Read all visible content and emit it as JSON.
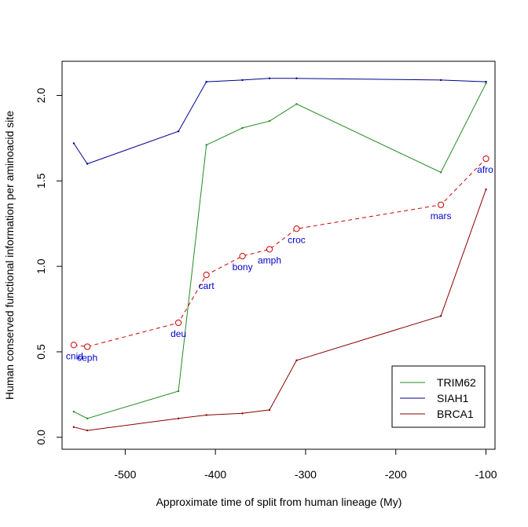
{
  "chart_data": {
    "type": "line",
    "xlabel": "Approximate time of split from human lineage (My)",
    "ylabel": "Human conserved functional information per aminoacid site",
    "xlim": [
      -570,
      -90
    ],
    "ylim": [
      -0.07,
      2.2
    ],
    "x_ticks": [
      -500,
      -400,
      -300,
      -200,
      -100
    ],
    "x_tick_labels": [
      "-500",
      "-400",
      "-300",
      "-200",
      "-100"
    ],
    "y_ticks": [
      0.0,
      0.5,
      1.0,
      1.5,
      2.0
    ],
    "y_tick_labels": [
      "0.0",
      "0.5",
      "1.0",
      "1.5",
      "2.0"
    ],
    "legend_position": "bottom-right",
    "series": [
      {
        "name": "TRIM62",
        "color": "#228B22",
        "line": "solid",
        "x": [
          -557,
          -542,
          -441,
          -410,
          -370,
          -340,
          -310,
          -150,
          -100
        ],
        "y": [
          0.15,
          0.11,
          0.27,
          1.71,
          1.81,
          1.85,
          1.95,
          1.55,
          2.07
        ]
      },
      {
        "name": "SIAH1",
        "color": "#00008B",
        "line": "solid",
        "x": [
          -557,
          -542,
          -441,
          -410,
          -370,
          -340,
          -310,
          -150,
          -100
        ],
        "y": [
          1.72,
          1.6,
          1.79,
          2.08,
          2.09,
          2.1,
          2.1,
          2.09,
          2.08
        ]
      },
      {
        "name": "BRCA1",
        "color": "#8B0000",
        "line": "solid",
        "x": [
          -557,
          -542,
          -441,
          -410,
          -370,
          -340,
          -310,
          -150,
          -100
        ],
        "y": [
          0.06,
          0.04,
          0.11,
          0.13,
          0.14,
          0.16,
          0.45,
          0.71,
          1.45
        ]
      },
      {
        "color": "#cc0000",
        "line": "dashed",
        "marker": "open-circle",
        "x": [
          -557,
          -542,
          -441,
          -410,
          -370,
          -340,
          -310,
          -150,
          -100
        ],
        "y": [
          0.54,
          0.53,
          0.67,
          0.95,
          1.06,
          1.1,
          1.22,
          1.36,
          1.63
        ]
      }
    ],
    "annotations": [
      {
        "text": "cnid",
        "x": -557,
        "y": 0.54
      },
      {
        "text": "ceph",
        "x": -542,
        "y": 0.53
      },
      {
        "text": "deu",
        "x": -441,
        "y": 0.67
      },
      {
        "text": "cart",
        "x": -410,
        "y": 0.95
      },
      {
        "text": "bony",
        "x": -370,
        "y": 1.06
      },
      {
        "text": "amph",
        "x": -340,
        "y": 1.1
      },
      {
        "text": "croc",
        "x": -310,
        "y": 1.22
      },
      {
        "text": "mars",
        "x": -150,
        "y": 1.36
      },
      {
        "text": "afro",
        "x": -100,
        "y": 1.63
      }
    ],
    "legend": [
      "TRIM62",
      "SIAH1",
      "BRCA1"
    ]
  }
}
